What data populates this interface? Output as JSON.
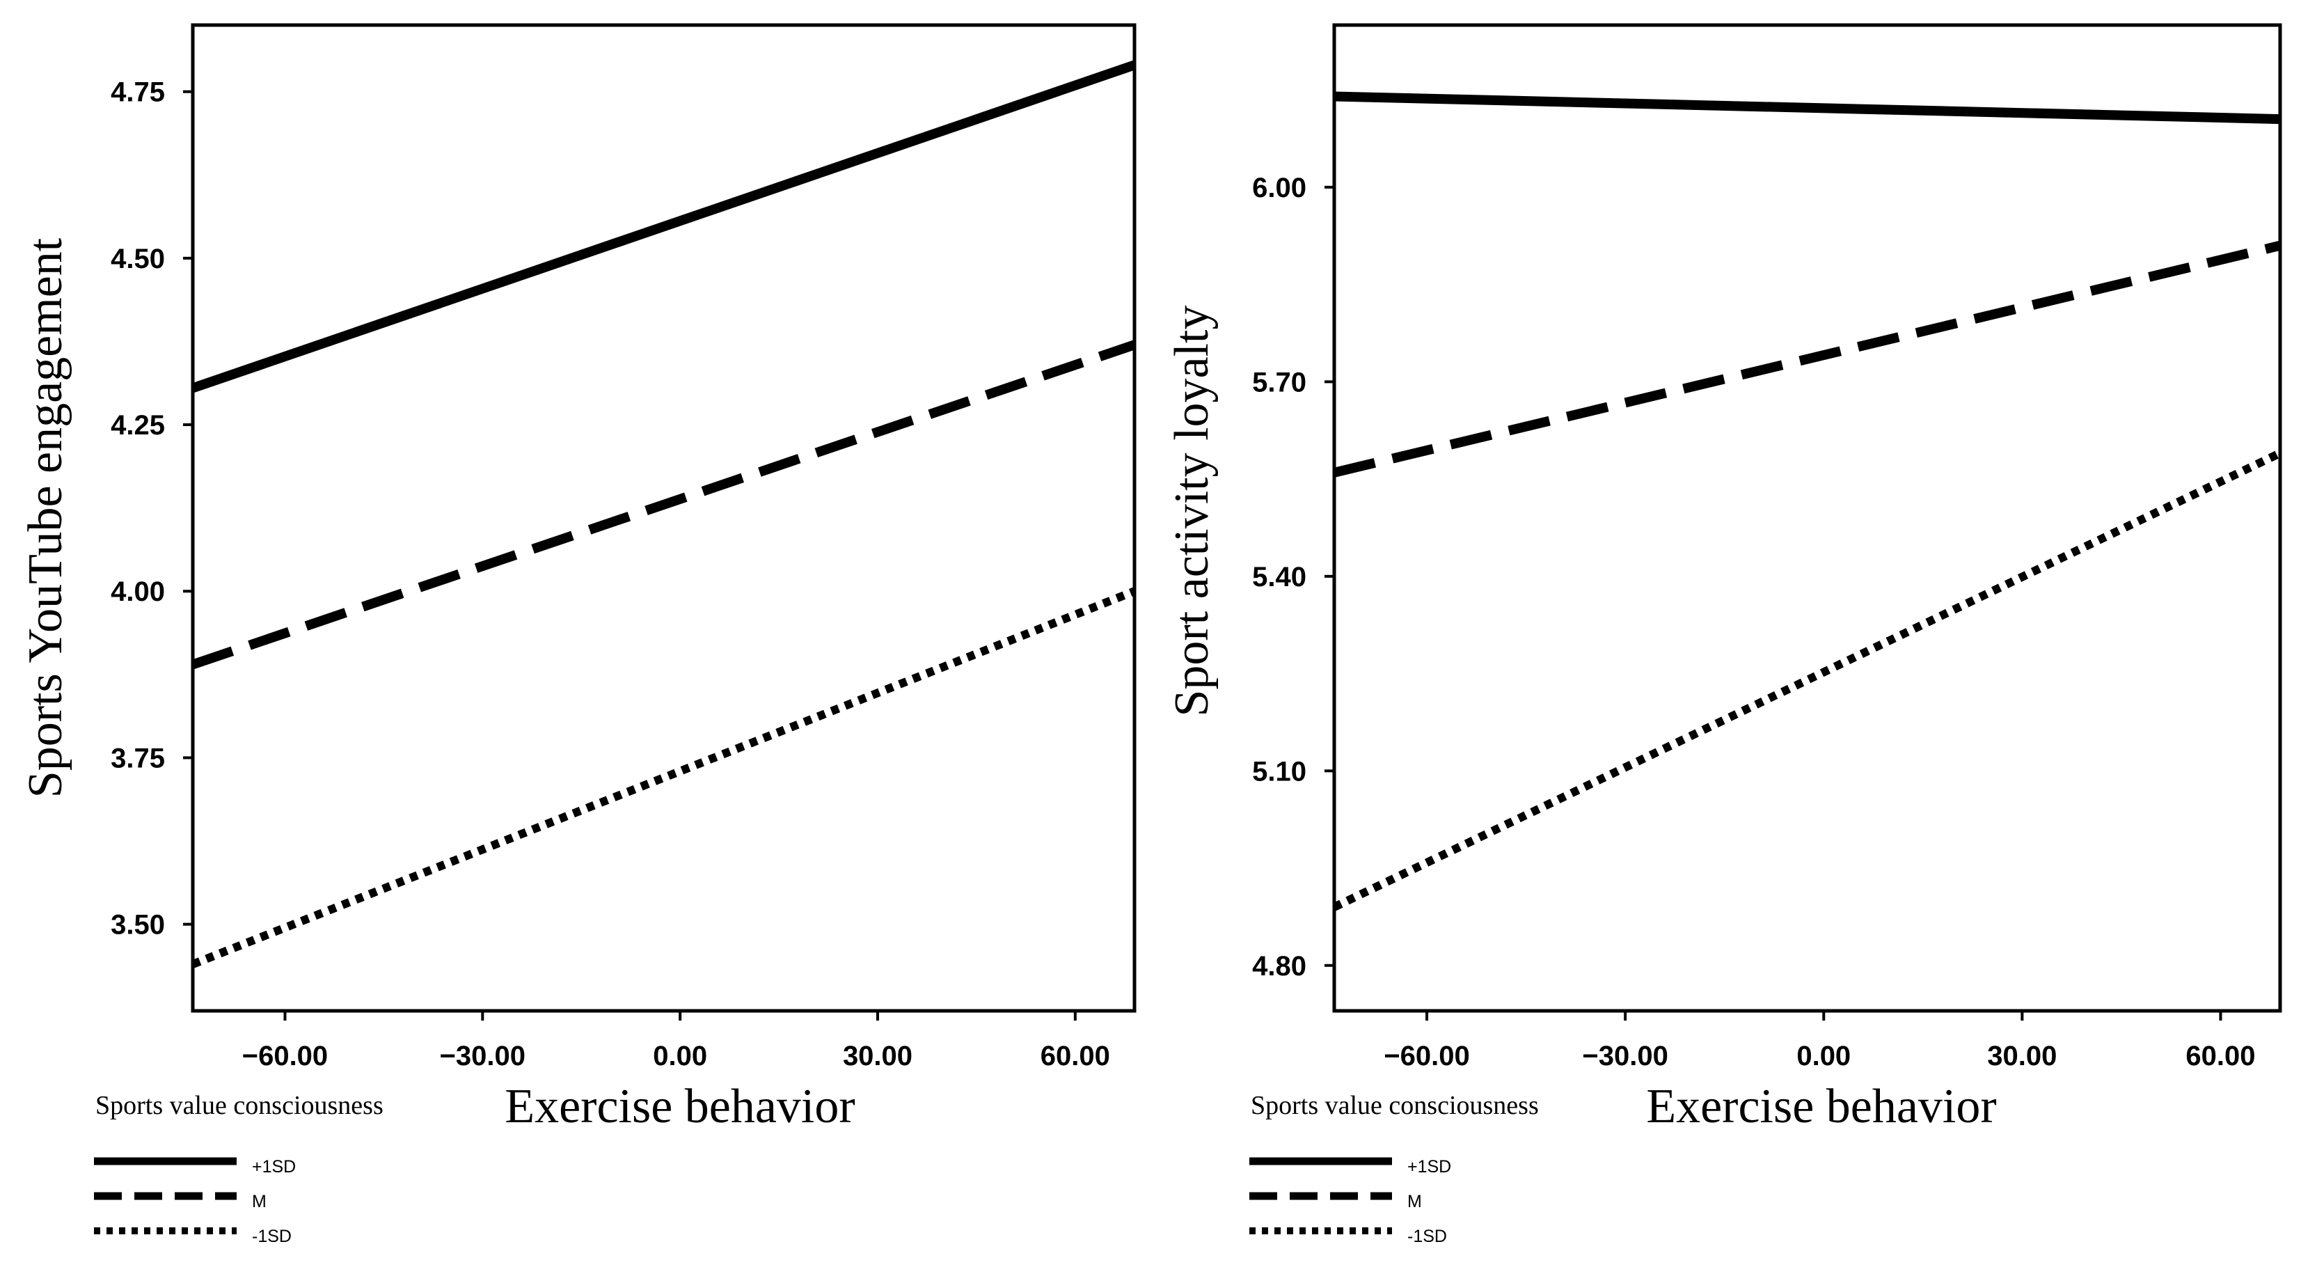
{
  "chart_data": [
    {
      "type": "line",
      "title": "",
      "xlabel": "Exercise behavior",
      "ylabel": "Sports YouTube engagement",
      "xlim": [
        -74,
        69
      ],
      "ylim": [
        3.37,
        4.85
      ],
      "x": [
        -74,
        69
      ],
      "xticks": [
        -60,
        -30,
        0,
        30,
        60
      ],
      "xtick_labels": [
        "−60.00",
        "−30.00",
        "0.00",
        "30.00",
        "60.00"
      ],
      "yticks": [
        3.5,
        3.75,
        4.0,
        4.25,
        4.5,
        4.75
      ],
      "ytick_labels": [
        "3.50",
        "3.75",
        "4.00",
        "4.25",
        "4.50",
        "4.75"
      ],
      "grid": false,
      "legend_title": "Sports value consciousness",
      "legend_position": "bottom-left",
      "series": [
        {
          "name": "+1SD",
          "style": "solid",
          "values": [
            4.305,
            4.79
          ]
        },
        {
          "name": "M",
          "style": "dashed",
          "values": [
            3.89,
            4.37
          ]
        },
        {
          "name": "-1SD",
          "style": "dotted",
          "values": [
            3.44,
            4.0
          ]
        }
      ]
    },
    {
      "type": "line",
      "title": "",
      "xlabel": "Exercise behavior",
      "ylabel": "Sport activity loyalty",
      "xlim": [
        -74,
        69
      ],
      "ylim": [
        4.73,
        6.25
      ],
      "x": [
        -74,
        69
      ],
      "xticks": [
        -60,
        -30,
        0,
        30,
        60
      ],
      "xtick_labels": [
        "−60.00",
        "−30.00",
        "0.00",
        "30.00",
        "60.00"
      ],
      "yticks": [
        4.8,
        5.1,
        5.4,
        5.7,
        6.0
      ],
      "ytick_labels": [
        "4.80",
        "5.10",
        "5.40",
        "5.70",
        "6.00"
      ],
      "grid": false,
      "legend_title": "Sports value consciousness",
      "legend_position": "bottom-left",
      "series": [
        {
          "name": "+1SD",
          "style": "solid",
          "values": [
            6.14,
            6.105
          ]
        },
        {
          "name": "M",
          "style": "dashed",
          "values": [
            5.56,
            5.91
          ]
        },
        {
          "name": "-1SD",
          "style": "dotted",
          "values": [
            4.89,
            5.59
          ]
        }
      ]
    }
  ]
}
